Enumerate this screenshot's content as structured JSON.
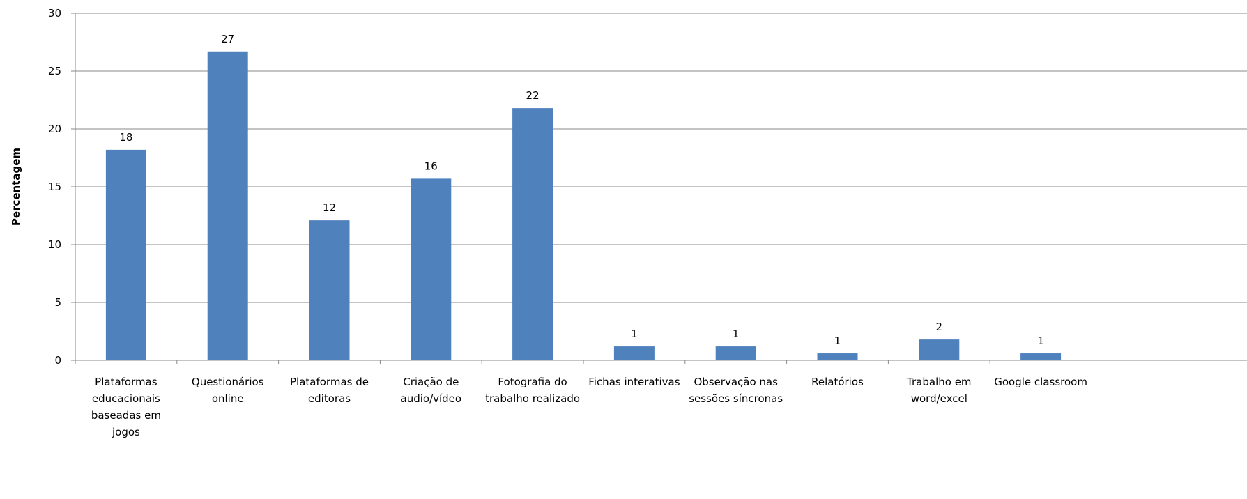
{
  "chart_data": {
    "type": "bar",
    "title": "",
    "xlabel": "",
    "ylabel": "Percentagem",
    "ylim": [
      0,
      30
    ],
    "yticks": [
      0,
      5,
      10,
      15,
      20,
      25,
      30
    ],
    "grid": true,
    "legend": "none",
    "bar_color": "#4f81bd",
    "categories": [
      [
        "Plataformas",
        "educacionais",
        "baseadas em",
        "jogos"
      ],
      [
        "Questionários",
        "online"
      ],
      [
        "Plataformas de",
        "editoras"
      ],
      [
        "Criação de",
        "audio/vídeo"
      ],
      [
        "Fotografia do",
        "trabalho realizado"
      ],
      [
        "Fichas interativas"
      ],
      [
        "Observação nas",
        "sessões síncronas"
      ],
      [
        "Relatórios"
      ],
      [
        "Trabalho em",
        "word/excel"
      ],
      [
        "Google classroom"
      ]
    ],
    "values": [
      18.2,
      26.7,
      12.1,
      15.7,
      21.8,
      1.2,
      1.2,
      0.6,
      1.8,
      0.6
    ],
    "data_labels": [
      "18",
      "27",
      "12",
      "16",
      "22",
      "1",
      "1",
      "1",
      "2",
      "1"
    ]
  }
}
